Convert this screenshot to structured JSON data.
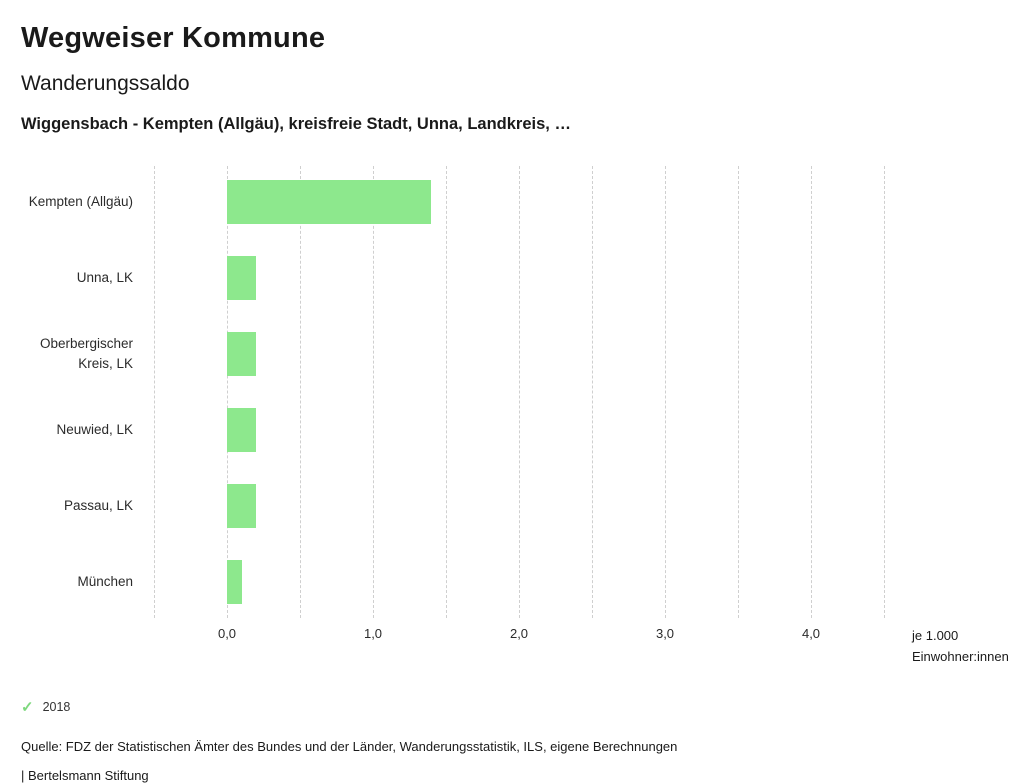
{
  "header": {
    "app_title": "Wegweiser Kommune",
    "chart_title": "Wanderungssaldo",
    "selection": "Wiggensbach - Kempten (Allgäu), kreisfreie Stadt, Unna, Landkreis, …"
  },
  "chart_data": {
    "type": "bar",
    "orientation": "horizontal",
    "title": "Wanderungssaldo",
    "categories": [
      "Kempten (Allgäu)",
      "Unna, LK",
      "Oberbergischer Kreis, LK",
      "Neuwied, LK",
      "Passau, LK",
      "München"
    ],
    "series": [
      {
        "name": "2018",
        "values": [
          1.4,
          0.2,
          0.2,
          0.2,
          0.2,
          0.1
        ]
      }
    ],
    "xlim": [
      -0.5,
      4.5
    ],
    "x_ticks": [
      0,
      1,
      2,
      3,
      4
    ],
    "x_tick_labels": [
      "0,0",
      "1,0",
      "2,0",
      "3,0",
      "4,0"
    ],
    "gridline_step": 0.5,
    "grid": "vertical-dashed",
    "bar_color": "#8de88d",
    "unit_label_line1": "je 1.000",
    "unit_label_line2": "Einwohner:innen"
  },
  "legend": {
    "items": [
      {
        "label": "2018",
        "marker": "check-icon",
        "color": "#7ed87e"
      }
    ]
  },
  "footer": {
    "source": "Quelle: FDZ der Statistischen Ämter des Bundes und der Länder, Wanderungsstatistik, ILS, eigene Berechnungen",
    "attribution": "| Bertelsmann Stiftung"
  }
}
